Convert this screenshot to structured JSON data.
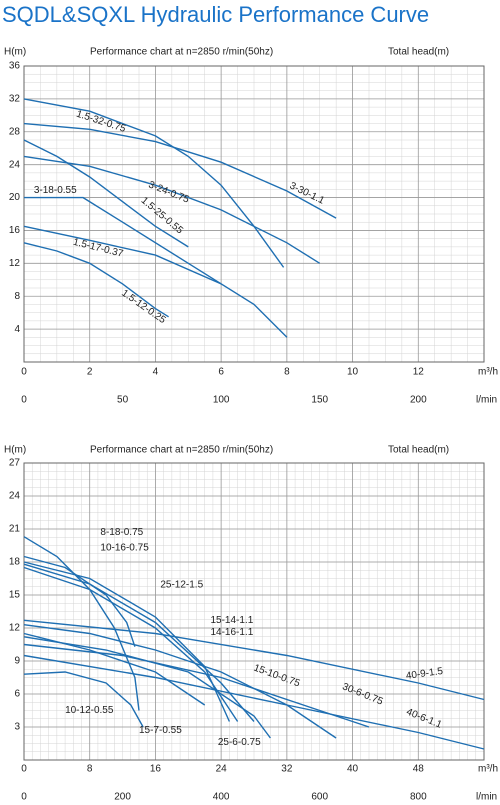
{
  "title": "SQDL&SQXL Hydraulic Performance Curve",
  "chart_data": [
    {
      "type": "line",
      "title": "Performance chart at n=2850 r/min(50hz)",
      "subtitle": "Total head(m)",
      "y_label": "H(m)",
      "x_label": "m³/h",
      "x2_label": "l/min",
      "color": "#1f6fb2",
      "grid": true,
      "xlim": [
        0,
        14
      ],
      "xticks": [
        0,
        2,
        4,
        6,
        8,
        10,
        12
      ],
      "x2lim": [
        0,
        233.3
      ],
      "x2ticks": [
        0,
        50,
        100,
        150,
        200
      ],
      "ylim": [
        0,
        36
      ],
      "yticks": [
        4,
        8,
        12,
        16,
        20,
        24,
        28,
        32,
        36
      ],
      "series": [
        {
          "name": "1.5-32-0.75",
          "x": [
            0,
            2,
            4,
            5,
            6,
            7,
            7.9
          ],
          "values": [
            32,
            30.5,
            27.5,
            25,
            21.5,
            16.5,
            11.5
          ]
        },
        {
          "name": "3-30-1.1",
          "x": [
            0,
            2,
            4,
            6,
            8,
            9.5
          ],
          "values": [
            29,
            28.3,
            26.8,
            24.3,
            20.8,
            17.5
          ]
        },
        {
          "name": "3-24-0.75",
          "x": [
            0,
            2,
            4,
            6,
            8,
            9
          ],
          "values": [
            25,
            23.8,
            21.5,
            18.5,
            14.5,
            12
          ]
        },
        {
          "name": "1.5-25-0.55",
          "x": [
            0,
            1,
            2,
            3,
            4,
            5
          ],
          "values": [
            27,
            25,
            22.5,
            19.5,
            16.5,
            14
          ]
        },
        {
          "name": "3-18-0.55",
          "x": [
            0,
            1.8,
            3,
            5,
            7,
            8
          ],
          "values": [
            20,
            20,
            17,
            12,
            7,
            3
          ]
        },
        {
          "name": "1.5-17-0.37",
          "x": [
            0,
            2,
            4,
            6
          ],
          "values": [
            16.5,
            14.8,
            13,
            9.5
          ]
        },
        {
          "name": "1.5-12-0.25",
          "x": [
            0,
            1,
            2,
            3,
            4,
            4.4
          ],
          "values": [
            14.5,
            13.5,
            12,
            9.5,
            6.5,
            5.5
          ]
        }
      ]
    },
    {
      "type": "line",
      "title": "Performance chart at n=2850 r/min(50hz)",
      "subtitle": "Total head(m)",
      "y_label": "H(m)",
      "x_label": "m³/h",
      "x2_label": "l/min",
      "color": "#1f6fb2",
      "grid": true,
      "xlim": [
        0,
        56
      ],
      "xticks": [
        0,
        8,
        16,
        24,
        32,
        40,
        48
      ],
      "x2lim": [
        0,
        933.3
      ],
      "x2ticks": [
        0,
        200,
        400,
        600,
        800
      ],
      "ylim": [
        0,
        27
      ],
      "yticks": [
        3,
        6,
        9,
        12,
        15,
        18,
        21,
        24,
        27
      ],
      "series": [
        {
          "name": "8-18-0.75",
          "x": [
            0,
            4,
            8,
            11,
            13.5,
            14
          ],
          "values": [
            20.3,
            18.5,
            15.5,
            12,
            7.5,
            4.5
          ]
        },
        {
          "name": "10-16-0.75",
          "x": [
            0,
            5,
            10,
            12.5,
            13.5
          ],
          "values": [
            18.5,
            17.5,
            15,
            12.5,
            10.3
          ]
        },
        {
          "name": "25-12-1.5",
          "x": [
            0,
            8,
            16,
            22,
            25
          ],
          "values": [
            18,
            16.5,
            13,
            8.5,
            3.5
          ]
        },
        {
          "name": "15-14-1.1",
          "x": [
            0,
            8,
            16,
            24,
            28
          ],
          "values": [
            17.8,
            16,
            12.5,
            7,
            3.5
          ]
        },
        {
          "name": "14-16-1.1",
          "x": [
            0,
            8,
            16,
            22,
            26
          ],
          "values": [
            17.5,
            15.5,
            12,
            8,
            3.5
          ]
        },
        {
          "name": "40-9-1.5",
          "x": [
            0,
            16,
            32,
            48,
            56
          ],
          "values": [
            12.7,
            11.5,
            9.5,
            7,
            5.5
          ]
        },
        {
          "name": "40-6-1.1",
          "x": [
            0,
            16,
            32,
            48,
            56
          ],
          "values": [
            9.5,
            7.5,
            5,
            2.5,
            1
          ]
        },
        {
          "name": "30-6-0.75",
          "x": [
            0,
            12,
            24,
            36,
            42
          ],
          "values": [
            10.5,
            9.5,
            7.5,
            4.5,
            3
          ]
        },
        {
          "name": "15-10-0.75",
          "x": [
            0,
            8,
            16,
            24,
            32,
            38
          ],
          "values": [
            12.3,
            11.5,
            10,
            8,
            5,
            2
          ]
        },
        {
          "name": "10-12-0.55",
          "x": [
            0,
            5,
            10,
            13,
            14.5
          ],
          "values": [
            7.8,
            8,
            7,
            5,
            3
          ]
        },
        {
          "name": "15-7-0.55",
          "x": [
            0,
            8,
            16,
            22
          ],
          "values": [
            11.5,
            10,
            8,
            5
          ]
        },
        {
          "name": "25-6-0.75",
          "x": [
            0,
            10,
            20,
            28,
            30
          ],
          "values": [
            11.2,
            10,
            8,
            4,
            2
          ]
        }
      ]
    }
  ]
}
